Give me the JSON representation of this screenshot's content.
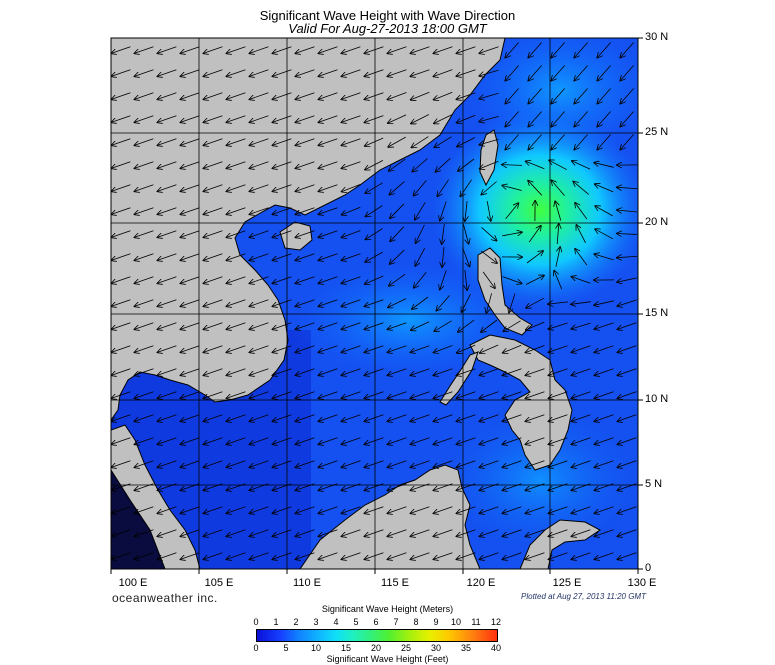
{
  "title": "Significant Wave Height with Wave Direction",
  "subtitle": "Valid For Aug-27-2013 18:00 GMT",
  "map": {
    "lon_range": [
      100,
      130
    ],
    "lat_range": [
      0,
      30
    ],
    "lat_labels": [
      "30 N",
      "25 N",
      "20 N",
      "15 N",
      "10 N",
      "5 N",
      "0"
    ],
    "lon_labels": [
      "100 E",
      "105 E",
      "110 E",
      "115 E",
      "120 E",
      "125 E",
      "130 E"
    ],
    "land_color": "#c0c0c0",
    "grid": true,
    "storm_center": {
      "lon": 122.5,
      "lat": 20.5
    },
    "wave_height_scale_colors": [
      "#0a10d8",
      "#1640ff",
      "#1080ff",
      "#10b0ff",
      "#10e0f8",
      "#20f0c0",
      "#30f080",
      "#50f030",
      "#a0f010",
      "#e8f000",
      "#ffc800",
      "#ff8010",
      "#ff3010"
    ]
  },
  "branding": {
    "company": "oceanweather inc.",
    "plotted": "Plotted at Aug 27, 2013 11:20 GMT"
  },
  "legend": {
    "meters_title": "Significant Wave Height (Meters)",
    "feet_title": "Significant Wave Height (Feet)",
    "meters_ticks": [
      "0",
      "1",
      "2",
      "3",
      "4",
      "5",
      "6",
      "7",
      "8",
      "9",
      "10",
      "11",
      "12"
    ],
    "feet_ticks": [
      "0",
      "5",
      "10",
      "15",
      "20",
      "25",
      "30",
      "35",
      "40"
    ]
  }
}
